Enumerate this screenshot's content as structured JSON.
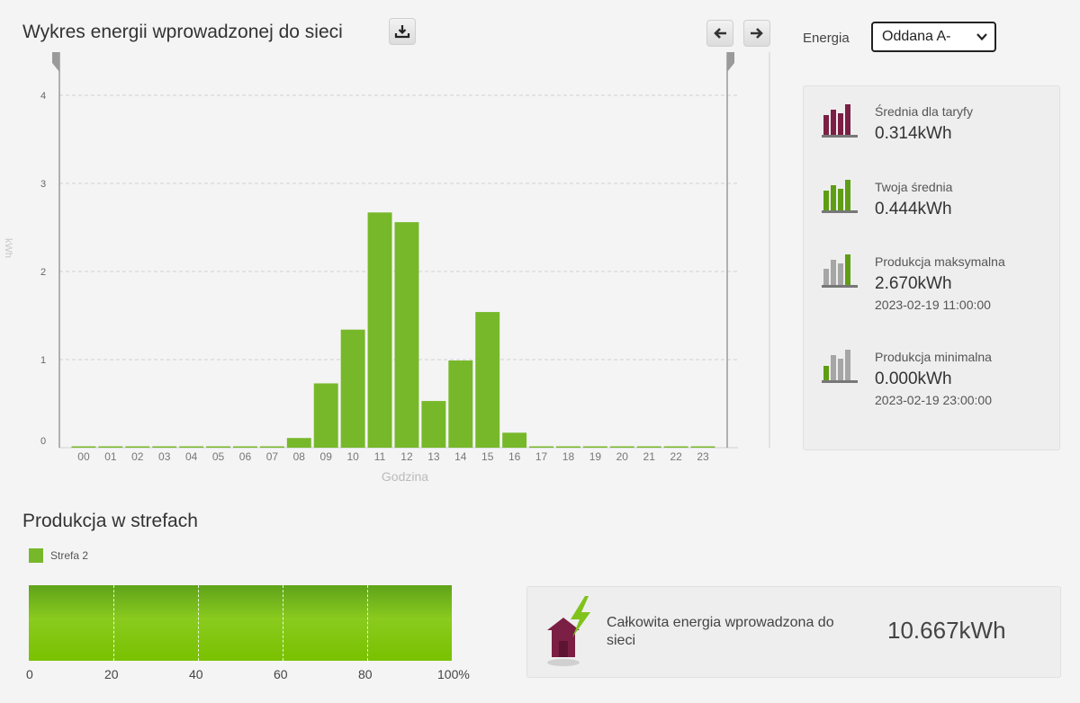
{
  "chart_section": {
    "title": "Wykres energii wprowadzonej do sieci"
  },
  "controls": {
    "energy_label": "Energia",
    "energy_select_value": "Oddana A-"
  },
  "stats": [
    {
      "label": "Średnia dla taryfy",
      "value": "0.314kWh",
      "date": "",
      "icon": "bar-chart-maroon-icon"
    },
    {
      "label": "Twoja średnia",
      "value": "0.444kWh",
      "date": "",
      "icon": "bar-chart-green-icon"
    },
    {
      "label": "Produkcja maksymalna",
      "value": "2.670kWh",
      "date": "2023-02-19 11:00:00",
      "icon": "bar-chart-max-icon"
    },
    {
      "label": "Produkcja minimalna",
      "value": "0.000kWh",
      "date": "2023-02-19 23:00:00",
      "icon": "bar-chart-min-icon"
    }
  ],
  "zones_section": {
    "title": "Produkcja w strefach",
    "legend": "Strefa 2",
    "ticks": [
      "0",
      "20",
      "40",
      "60",
      "80",
      "100%"
    ],
    "zone2_share_percent": 100
  },
  "total": {
    "label": "Całkowita energia wprowadzona do sieci",
    "value": "10.667kWh",
    "icon": "house-lightning-icon"
  },
  "colors": {
    "bar": "#77b82a",
    "maroon": "#7b1f45",
    "accent": "#7fc31c"
  },
  "chart_data": {
    "type": "bar",
    "title": "Wykres energii wprowadzonej do sieci",
    "xlabel": "Godzina",
    "ylabel": "kWh",
    "ylim": [
      0,
      4
    ],
    "yticks": [
      "0",
      "1",
      "2",
      "3",
      "4"
    ],
    "grid": true,
    "categories": [
      "00",
      "01",
      "02",
      "03",
      "04",
      "05",
      "06",
      "07",
      "08",
      "09",
      "10",
      "11",
      "12",
      "13",
      "14",
      "15",
      "16",
      "17",
      "18",
      "19",
      "20",
      "21",
      "22",
      "23"
    ],
    "values": [
      0,
      0,
      0,
      0,
      0,
      0,
      0,
      0,
      0.11,
      0.73,
      1.34,
      2.67,
      2.56,
      0.53,
      0.99,
      1.54,
      0.17,
      0,
      0,
      0,
      0,
      0,
      0,
      0
    ]
  }
}
